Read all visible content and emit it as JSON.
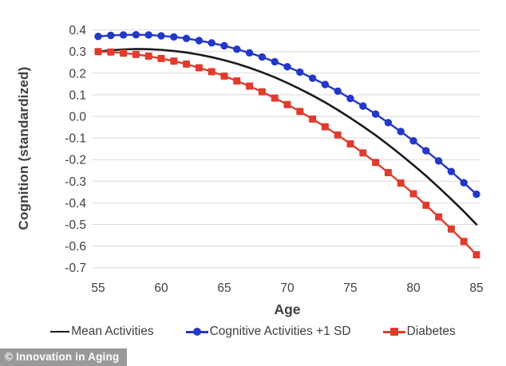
{
  "watermark": {
    "text": "© Innovation in Aging"
  },
  "colors": {
    "blue": "#2337C9",
    "red": "#E03C2D",
    "black": "#1a1a1a",
    "grid": "#d9d9d9",
    "text": "#3f3f3f",
    "watermark_bg": "#9a9a9a"
  },
  "chart_data": {
    "type": "line",
    "title": "",
    "xlabel": "Age",
    "ylabel": "Cognition (standardized)",
    "xlim": [
      55,
      85
    ],
    "ylim": [
      -0.7,
      0.4
    ],
    "x_ticks": [
      55,
      60,
      65,
      70,
      75,
      80,
      85
    ],
    "y_ticks": [
      0.4,
      0.3,
      0.2,
      0.1,
      0.0,
      -0.1,
      -0.2,
      -0.3,
      -0.4,
      -0.5,
      -0.6,
      -0.7
    ],
    "grid": "horizontal",
    "legend_position": "bottom",
    "x": [
      55,
      56,
      57,
      58,
      59,
      60,
      61,
      62,
      63,
      64,
      65,
      66,
      67,
      68,
      69,
      70,
      71,
      72,
      73,
      74,
      75,
      76,
      77,
      78,
      79,
      80,
      81,
      82,
      83,
      84,
      85
    ],
    "series": [
      {
        "name": "Mean Activities",
        "color": "#1a1a1a",
        "marker": "none",
        "values": [
          0.3,
          0.306,
          0.31,
          0.312,
          0.311,
          0.308,
          0.303,
          0.296,
          0.286,
          0.274,
          0.26,
          0.244,
          0.225,
          0.204,
          0.181,
          0.155,
          0.127,
          0.097,
          0.065,
          0.03,
          -0.007,
          -0.046,
          -0.087,
          -0.131,
          -0.177,
          -0.225,
          -0.275,
          -0.328,
          -0.383,
          -0.44,
          -0.5
        ]
      },
      {
        "name": "Cognitive Activities +1 SD",
        "color": "#2337C9",
        "marker": "circle",
        "values": [
          0.37,
          0.375,
          0.377,
          0.378,
          0.377,
          0.373,
          0.368,
          0.361,
          0.351,
          0.34,
          0.327,
          0.311,
          0.294,
          0.275,
          0.253,
          0.23,
          0.205,
          0.177,
          0.148,
          0.117,
          0.083,
          0.048,
          0.011,
          -0.029,
          -0.07,
          -0.113,
          -0.159,
          -0.206,
          -0.255,
          -0.307,
          -0.36
        ]
      },
      {
        "name": "Diabetes",
        "color": "#E03C2D",
        "marker": "square",
        "values": [
          0.3,
          0.298,
          0.293,
          0.287,
          0.279,
          0.268,
          0.256,
          0.242,
          0.225,
          0.207,
          0.187,
          0.164,
          0.14,
          0.114,
          0.085,
          0.055,
          0.023,
          -0.012,
          -0.048,
          -0.086,
          -0.127,
          -0.169,
          -0.213,
          -0.26,
          -0.308,
          -0.358,
          -0.411,
          -0.465,
          -0.521,
          -0.579,
          -0.64
        ]
      }
    ]
  }
}
